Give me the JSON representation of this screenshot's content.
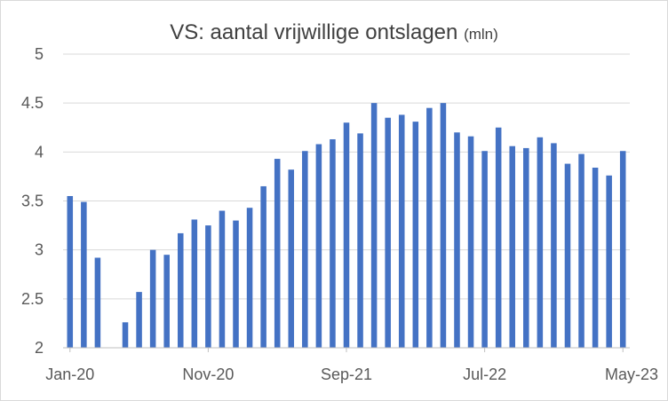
{
  "chart_data": {
    "type": "bar",
    "title": "VS: aantal vrijwillige ontslagen",
    "title_unit": "(mln)",
    "xlabel": "",
    "ylabel": "",
    "ylim": [
      2,
      5
    ],
    "yticks": [
      "2",
      "2.5",
      "3",
      "3.5",
      "4",
      "4.5",
      "5"
    ],
    "grid": "horizontal",
    "bar_color": "#4472c4",
    "x_tick_labels": [
      {
        "index": 0,
        "label": "Jan-20"
      },
      {
        "index": 10,
        "label": "Nov-20"
      },
      {
        "index": 20,
        "label": "Sep-21"
      },
      {
        "index": 30,
        "label": "Jul-22"
      },
      {
        "index": 40,
        "label": "May-23"
      }
    ],
    "categories": [
      "Jan-20",
      "Feb-20",
      "Mar-20",
      "Apr-20",
      "May-20",
      "Jun-20",
      "Jul-20",
      "Aug-20",
      "Sep-20",
      "Oct-20",
      "Nov-20",
      "Dec-20",
      "Jan-21",
      "Feb-21",
      "Mar-21",
      "Apr-21",
      "May-21",
      "Jun-21",
      "Jul-21",
      "Aug-21",
      "Sep-21",
      "Oct-21",
      "Nov-21",
      "Dec-21",
      "Jan-22",
      "Feb-22",
      "Mar-22",
      "Apr-22",
      "May-22",
      "Jun-22",
      "Jul-22",
      "Aug-22",
      "Sep-22",
      "Oct-22",
      "Nov-22",
      "Dec-22",
      "Jan-23",
      "Feb-23",
      "Mar-23",
      "Apr-23",
      "May-23"
    ],
    "values": [
      3.55,
      3.49,
      2.92,
      null,
      2.26,
      2.57,
      3.0,
      2.95,
      3.17,
      3.31,
      3.25,
      3.4,
      3.3,
      3.43,
      3.65,
      3.93,
      3.82,
      4.01,
      4.08,
      4.13,
      4.3,
      4.19,
      4.5,
      4.35,
      4.38,
      4.31,
      4.45,
      4.5,
      4.2,
      4.16,
      4.01,
      4.25,
      4.06,
      4.04,
      4.15,
      4.09,
      3.88,
      3.98,
      3.84,
      3.76,
      4.01
    ]
  }
}
